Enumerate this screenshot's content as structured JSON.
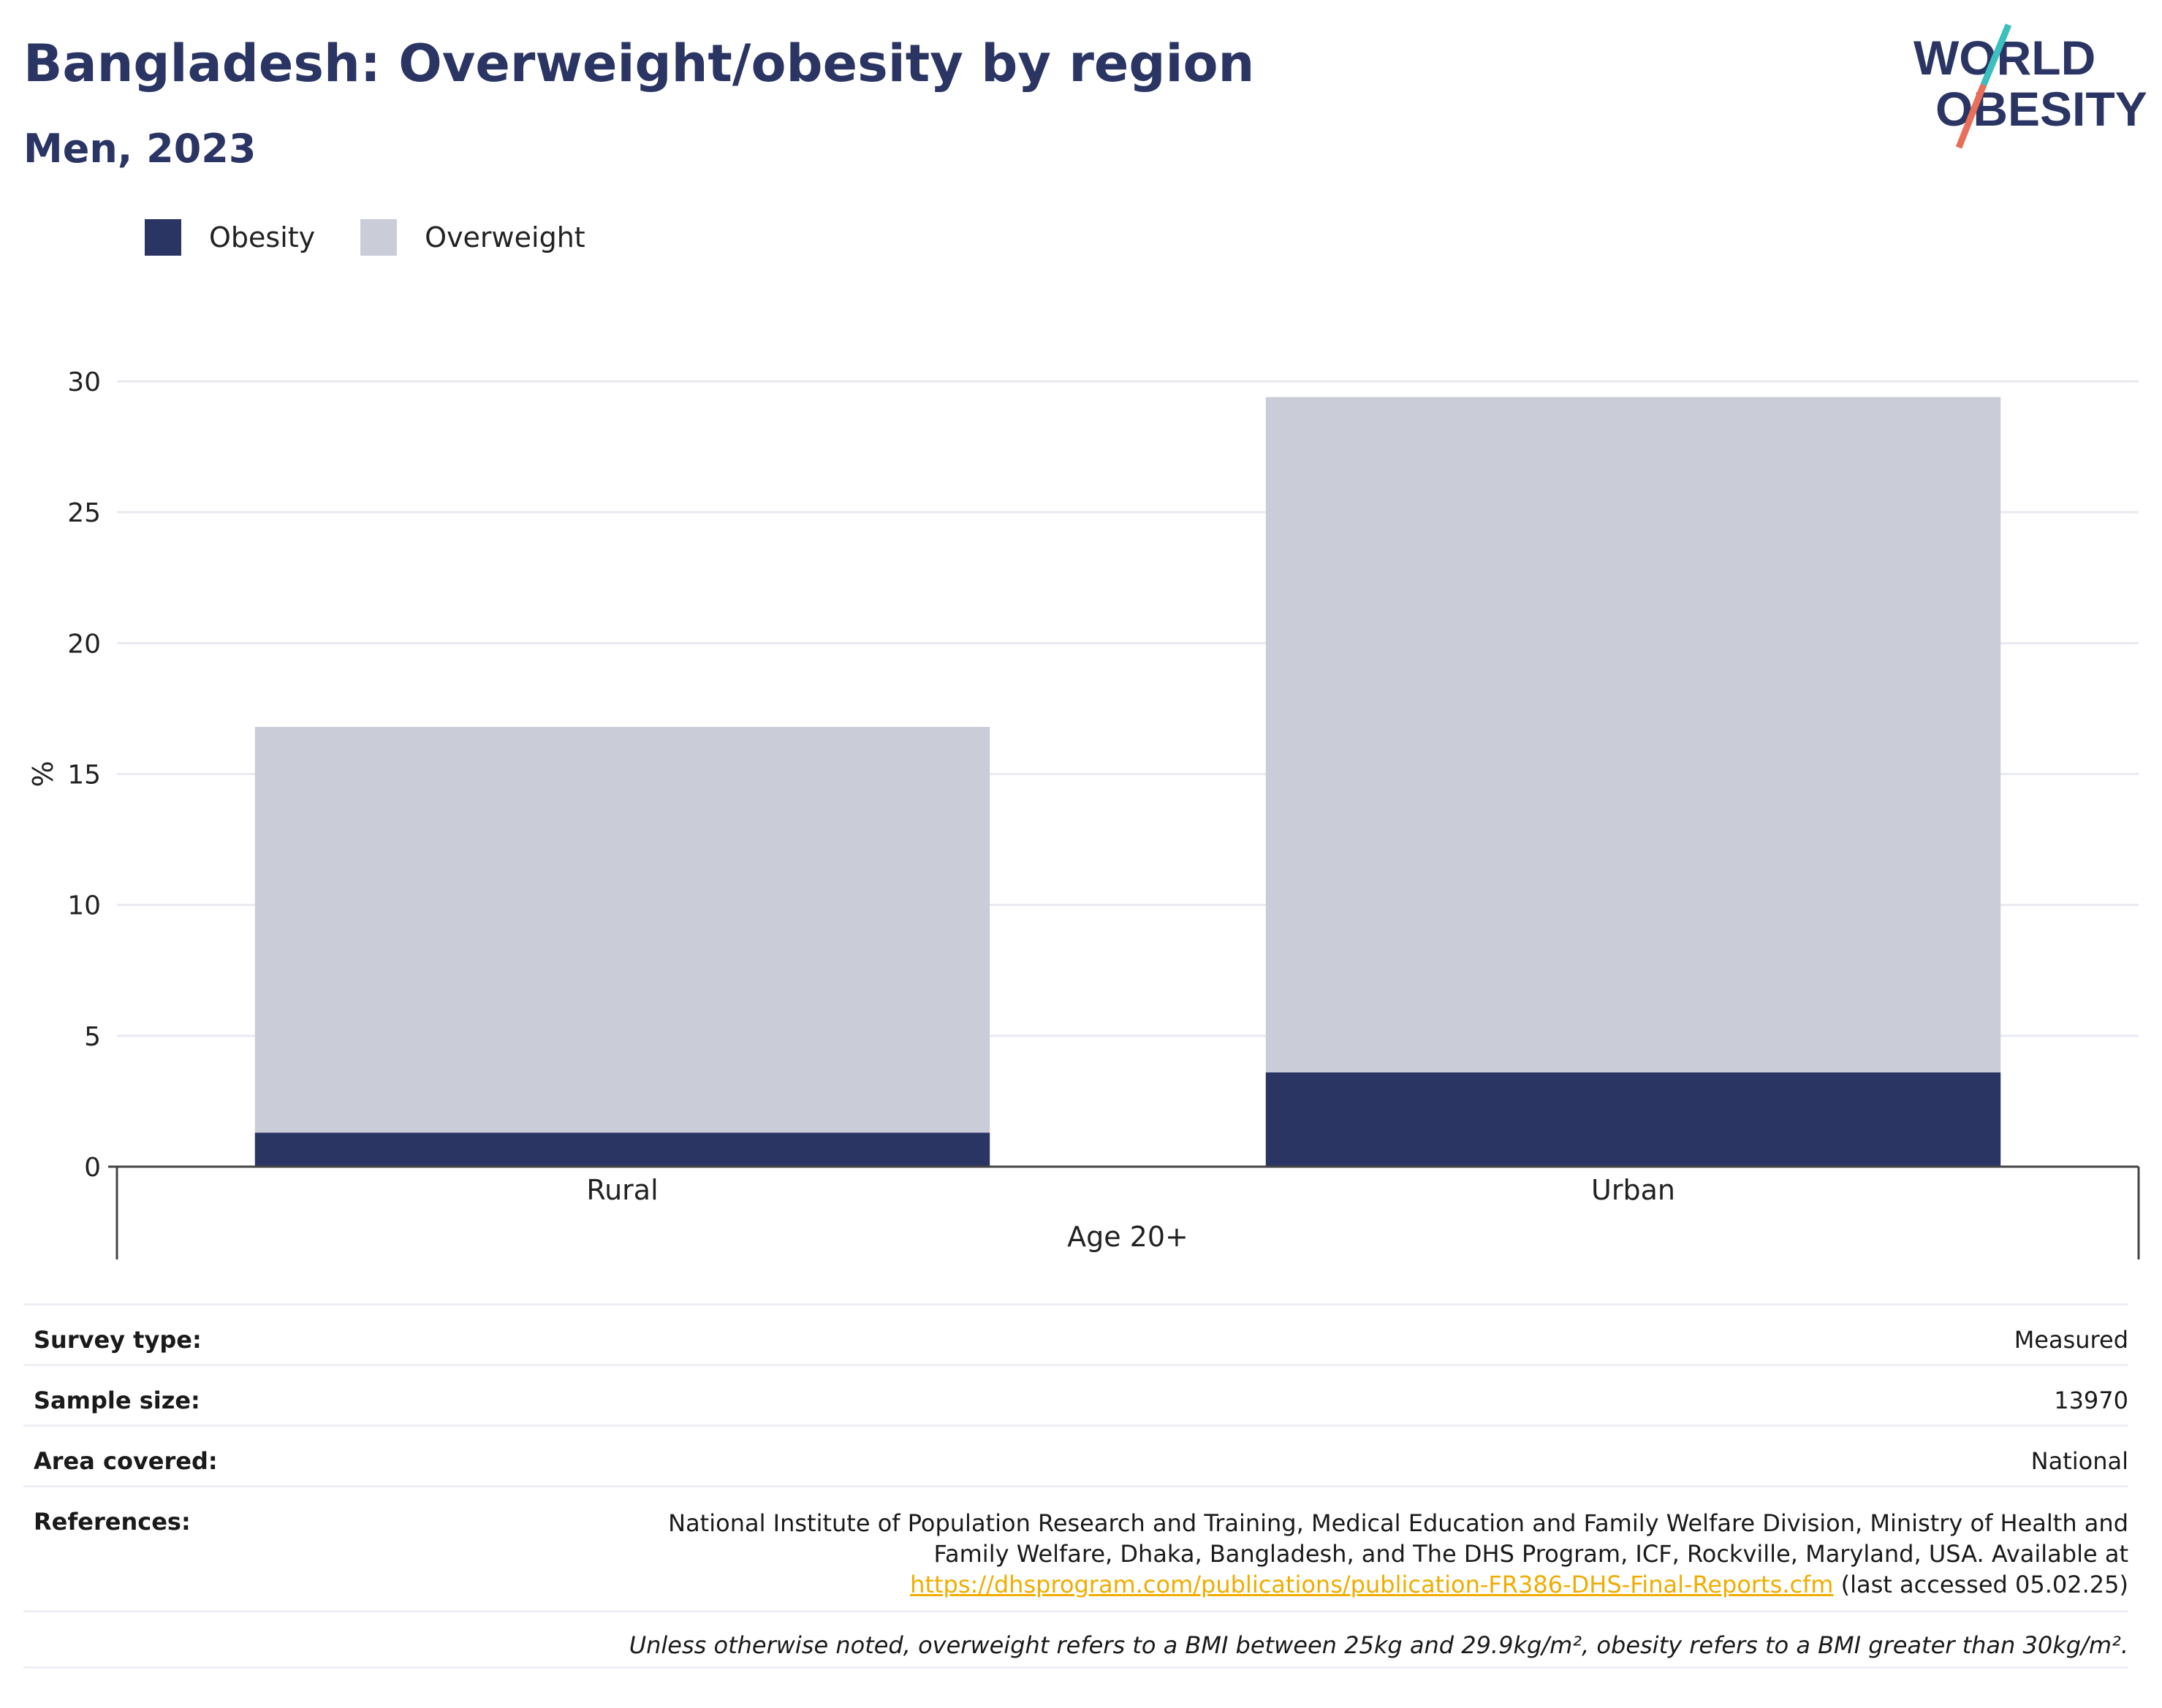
{
  "header": {
    "title": "Bangladesh: Overweight/obesity by region",
    "subtitle": "Men, 2023"
  },
  "logo": {
    "line1": "WORLD",
    "line2": "OBESITY",
    "accent_teal": "#3cbfbf",
    "accent_coral": "#e8705a"
  },
  "legend": [
    {
      "label": "Obesity",
      "color": "#2b3564"
    },
    {
      "label": "Overweight",
      "color": "#cacdd8"
    }
  ],
  "chart_data": {
    "type": "bar",
    "stacked": true,
    "categories": [
      "Rural",
      "Urban"
    ],
    "series": [
      {
        "name": "Obesity",
        "values": [
          1.3,
          3.6
        ],
        "color": "#2b3564"
      },
      {
        "name": "Overweight",
        "values": [
          15.5,
          25.8
        ],
        "color": "#cacdd8"
      }
    ],
    "xlabel": "Age 20+",
    "ylabel": "%",
    "ylim": [
      0,
      30
    ],
    "yticks": [
      0,
      5,
      10,
      15,
      20,
      25,
      30
    ],
    "grid": true
  },
  "meta": {
    "survey_type_label": "Survey type:",
    "survey_type_value": "Measured",
    "sample_size_label": "Sample size:",
    "sample_size_value": "13970",
    "area_label": "Area covered:",
    "area_value": "National",
    "references_label": "References:",
    "references_text": "National Institute of Population Research and Training, Medical Education and Family Welfare Division, Ministry of Health and Family Welfare, Dhaka, Bangladesh, and The DHS Program, ICF, Rockville, Maryland, USA. Available at",
    "references_link": "https://dhsprogram.com/publications/publication-FR386-DHS-Final-Reports.cfm",
    "references_suffix": "(last accessed 05.02.25)",
    "note": "Unless otherwise noted, overweight refers to a BMI between 25kg and 29.9kg/m², obesity refers to a BMI greater than 30kg/m²."
  }
}
